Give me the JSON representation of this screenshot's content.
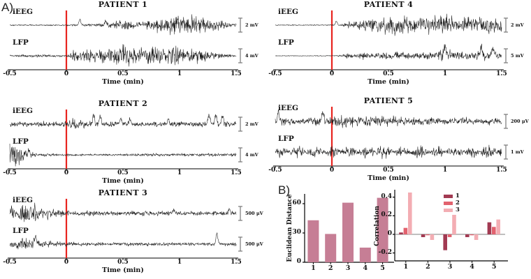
{
  "figure_labels": {
    "panel_a": "A)",
    "panel_b": "B)"
  },
  "colors": {
    "trace": "#1b1b1b",
    "onset_line": "#e8241f",
    "axis": "#000000",
    "scalebar": "#777777"
  },
  "patients": [
    {
      "title": "PATIENT 1",
      "xlabel": "Time (min)",
      "time_ticks": [
        "-0.5",
        "0",
        "0.5",
        "1",
        "1.5"
      ],
      "traces": [
        {
          "label": "iEEG",
          "scale": "2 mV",
          "seed": 101,
          "envelope": [
            [
              -0.5,
              0.05
            ],
            [
              -0.05,
              0.06
            ],
            [
              0.1,
              0.1
            ],
            [
              0.3,
              0.16
            ],
            [
              0.45,
              0.38
            ],
            [
              0.55,
              0.5
            ],
            [
              0.62,
              0.26
            ],
            [
              0.75,
              0.55
            ],
            [
              0.9,
              0.95
            ],
            [
              1.05,
              1.0
            ],
            [
              1.2,
              0.8
            ],
            [
              1.35,
              0.5
            ],
            [
              1.45,
              0.18
            ],
            [
              1.5,
              0.12
            ]
          ],
          "spikes": [
            {
              "t": 0.12,
              "a": 0.5
            },
            {
              "t": 0.35,
              "a": 0.35
            }
          ]
        },
        {
          "label": "LFP",
          "scale": "4 mV",
          "seed": 102,
          "envelope": [
            [
              -0.5,
              0.07
            ],
            [
              -0.35,
              0.12
            ],
            [
              -0.25,
              0.18
            ],
            [
              -0.15,
              0.1
            ],
            [
              0.0,
              0.08
            ],
            [
              0.07,
              0.5
            ],
            [
              0.12,
              0.75
            ],
            [
              0.2,
              0.55
            ],
            [
              0.35,
              0.65
            ],
            [
              0.5,
              1.0
            ],
            [
              0.6,
              0.9
            ],
            [
              0.7,
              0.7
            ],
            [
              0.8,
              0.85
            ],
            [
              0.95,
              0.95
            ],
            [
              1.1,
              0.7
            ],
            [
              1.25,
              0.5
            ],
            [
              1.4,
              0.15
            ],
            [
              1.5,
              0.1
            ]
          ],
          "spikes": []
        }
      ]
    },
    {
      "title": "PATIENT 2",
      "xlabel": "Time (min)",
      "time_ticks": [
        "-0.5",
        "0",
        "0.5",
        "1",
        "1.5"
      ],
      "traces": [
        {
          "label": "iEEG",
          "scale": "2 mV",
          "seed": 103,
          "envelope": [
            [
              -0.5,
              0.22
            ],
            [
              -0.05,
              0.24
            ],
            [
              0.02,
              0.5
            ],
            [
              0.12,
              0.45
            ],
            [
              0.22,
              0.28
            ],
            [
              0.5,
              0.24
            ],
            [
              0.8,
              0.22
            ],
            [
              1.1,
              0.24
            ],
            [
              1.45,
              0.3
            ],
            [
              1.5,
              0.26
            ]
          ],
          "spikes": [
            {
              "t": 0.24,
              "a": 0.85
            },
            {
              "t": 0.3,
              "a": 0.75
            },
            {
              "t": 0.48,
              "a": 0.6
            },
            {
              "t": 0.56,
              "a": 0.5
            },
            {
              "t": 0.9,
              "a": 0.45
            },
            {
              "t": 1.26,
              "a": 0.95
            },
            {
              "t": 1.32,
              "a": 0.9
            },
            {
              "t": 1.38,
              "a": 0.8
            }
          ]
        },
        {
          "label": "LFP",
          "scale": "4 mV",
          "seed": 104,
          "envelope": [
            [
              -0.5,
              0.95
            ],
            [
              -0.44,
              1.0
            ],
            [
              -0.38,
              0.7
            ],
            [
              -0.32,
              0.35
            ],
            [
              -0.27,
              0.15
            ],
            [
              -0.1,
              0.1
            ],
            [
              0.0,
              0.1
            ],
            [
              0.4,
              0.08
            ],
            [
              0.6,
              0.12
            ],
            [
              0.9,
              0.14
            ],
            [
              1.2,
              0.14
            ],
            [
              1.5,
              0.14
            ]
          ],
          "spikes": [
            {
              "t": -0.33,
              "a": 0.5
            }
          ]
        }
      ]
    },
    {
      "title": "PATIENT 3",
      "xlabel": "Time (min)",
      "time_ticks": [
        "-0.5",
        "0",
        "0.5",
        "1",
        "1.5"
      ],
      "traces": [
        {
          "label": "iEEG",
          "scale": "500 μV",
          "seed": 105,
          "envelope": [
            [
              -0.5,
              0.55
            ],
            [
              -0.42,
              0.8
            ],
            [
              -0.35,
              1.0
            ],
            [
              -0.28,
              0.85
            ],
            [
              -0.2,
              0.65
            ],
            [
              -0.12,
              0.4
            ],
            [
              -0.05,
              0.3
            ],
            [
              0.0,
              0.25
            ],
            [
              0.3,
              0.2
            ],
            [
              0.6,
              0.22
            ],
            [
              0.9,
              0.2
            ],
            [
              1.2,
              0.2
            ],
            [
              1.5,
              0.24
            ]
          ],
          "spikes": [
            {
              "t": 0.95,
              "a": 0.45
            },
            {
              "t": 1.44,
              "a": 0.4
            }
          ]
        },
        {
          "label": "LFP",
          "scale": "500 μV",
          "seed": 106,
          "envelope": [
            [
              -0.5,
              0.35
            ],
            [
              -0.4,
              0.5
            ],
            [
              -0.3,
              0.45
            ],
            [
              -0.2,
              0.3
            ],
            [
              -0.1,
              0.25
            ],
            [
              0.0,
              0.2
            ],
            [
              0.5,
              0.15
            ],
            [
              1.0,
              0.15
            ],
            [
              1.3,
              0.15
            ],
            [
              1.5,
              0.17
            ]
          ],
          "spikes": [
            {
              "t": -0.27,
              "a": 0.85
            },
            {
              "t": 1.33,
              "a": 1.0
            }
          ]
        }
      ]
    },
    {
      "title": "PATIENT 4",
      "xlabel": "Time (min)",
      "time_ticks": [
        "-0.5",
        "0",
        "0.5",
        "1",
        "1.5"
      ],
      "traces": [
        {
          "label": "iEEG",
          "scale": "2 mV",
          "seed": 107,
          "envelope": [
            [
              -0.5,
              0.04
            ],
            [
              0.0,
              0.04
            ],
            [
              0.08,
              0.06
            ],
            [
              0.15,
              0.3
            ],
            [
              0.25,
              0.55
            ],
            [
              0.4,
              0.7
            ],
            [
              0.55,
              0.9
            ],
            [
              0.7,
              0.8
            ],
            [
              0.85,
              0.85
            ],
            [
              1.0,
              0.9
            ],
            [
              1.15,
              0.75
            ],
            [
              1.3,
              0.7
            ],
            [
              1.45,
              0.78
            ],
            [
              1.5,
              0.7
            ]
          ],
          "spikes": [
            {
              "t": 0.04,
              "a": 0.35
            }
          ]
        },
        {
          "label": "LFP",
          "scale": "5 mV",
          "seed": 108,
          "envelope": [
            [
              -0.5,
              0.03
            ],
            [
              0.0,
              0.03
            ],
            [
              0.08,
              0.08
            ],
            [
              0.14,
              0.35
            ],
            [
              0.2,
              0.12
            ],
            [
              0.26,
              0.45
            ],
            [
              0.33,
              0.18
            ],
            [
              0.45,
              0.35
            ],
            [
              0.6,
              0.4
            ],
            [
              0.75,
              0.35
            ],
            [
              0.9,
              0.45
            ],
            [
              1.0,
              0.75
            ],
            [
              1.08,
              0.4
            ],
            [
              1.2,
              0.35
            ],
            [
              1.35,
              0.45
            ],
            [
              1.5,
              0.35
            ]
          ],
          "spikes": [
            {
              "t": 1.0,
              "a": 1.0
            },
            {
              "t": 1.32,
              "a": 0.8
            },
            {
              "t": 1.42,
              "a": 0.7
            }
          ]
        }
      ]
    },
    {
      "title": "PATIENT 5",
      "xlabel": "Time (min)",
      "time_ticks": [
        "-0.5",
        "0",
        "0.5",
        "1",
        "1.5"
      ],
      "traces": [
        {
          "label": "iEEG",
          "scale": "200 μV",
          "seed": 109,
          "envelope": [
            [
              -0.5,
              0.3
            ],
            [
              -0.45,
              0.6
            ],
            [
              -0.4,
              0.3
            ],
            [
              -0.3,
              0.32
            ],
            [
              -0.2,
              0.35
            ],
            [
              -0.1,
              0.5
            ],
            [
              0.0,
              0.42
            ],
            [
              0.1,
              0.55
            ],
            [
              0.2,
              0.6
            ],
            [
              0.3,
              0.55
            ],
            [
              0.45,
              0.5
            ],
            [
              0.6,
              0.4
            ],
            [
              0.8,
              0.35
            ],
            [
              1.0,
              0.32
            ],
            [
              1.2,
              0.35
            ],
            [
              1.35,
              0.3
            ],
            [
              1.5,
              0.35
            ]
          ],
          "spikes": [
            {
              "t": -0.47,
              "a": 0.9
            },
            {
              "t": -0.08,
              "a": 0.65
            }
          ]
        },
        {
          "label": "LFP",
          "scale": "1 mV",
          "seed": 110,
          "envelope": [
            [
              -0.5,
              0.55
            ],
            [
              -0.35,
              0.6
            ],
            [
              -0.2,
              0.62
            ],
            [
              0.0,
              0.55
            ],
            [
              0.2,
              0.58
            ],
            [
              0.4,
              0.62
            ],
            [
              0.6,
              0.58
            ],
            [
              0.8,
              0.62
            ],
            [
              1.0,
              0.58
            ],
            [
              1.2,
              0.6
            ],
            [
              1.35,
              0.58
            ],
            [
              1.5,
              0.62
            ]
          ],
          "spikes": [],
          "burst_freq": 6.5,
          "burst_phase": 0.8
        }
      ]
    }
  ],
  "chart_data": [
    {
      "type": "bar",
      "title": "",
      "xlabel": "",
      "ylabel": "Euclidean Distance",
      "categories": [
        "1",
        "2",
        "3",
        "4",
        "5"
      ],
      "values": [
        43,
        29,
        61,
        15,
        66
      ],
      "yticks": [
        0,
        30,
        60
      ],
      "ytick_labels": [
        "0",
        "30",
        "60"
      ],
      "ylim": [
        0,
        70
      ],
      "bar_color": "#c67e95",
      "grid": false
    },
    {
      "type": "bar",
      "title": "",
      "xlabel": "",
      "ylabel": "Correlation",
      "categories": [
        "1",
        "2",
        "3",
        "4",
        "5"
      ],
      "series": [
        {
          "name": "1",
          "color": "#a23a52",
          "values": [
            0.02,
            -0.03,
            -0.17,
            -0.03,
            0.13
          ]
        },
        {
          "name": "2",
          "color": "#e2626e",
          "values": [
            0.07,
            -0.01,
            -0.03,
            -0.01,
            0.08
          ]
        },
        {
          "name": "3",
          "color": "#f3adb3",
          "values": [
            0.45,
            -0.06,
            0.21,
            -0.06,
            0.16
          ]
        }
      ],
      "yticks": [
        -0.2,
        0,
        0.2,
        0.4
      ],
      "ytick_labels": [
        "-0.2",
        "0",
        "0.2",
        "0.4"
      ],
      "ylim": [
        -0.27,
        0.48
      ],
      "legend_position": "top-right",
      "grid": false
    }
  ]
}
